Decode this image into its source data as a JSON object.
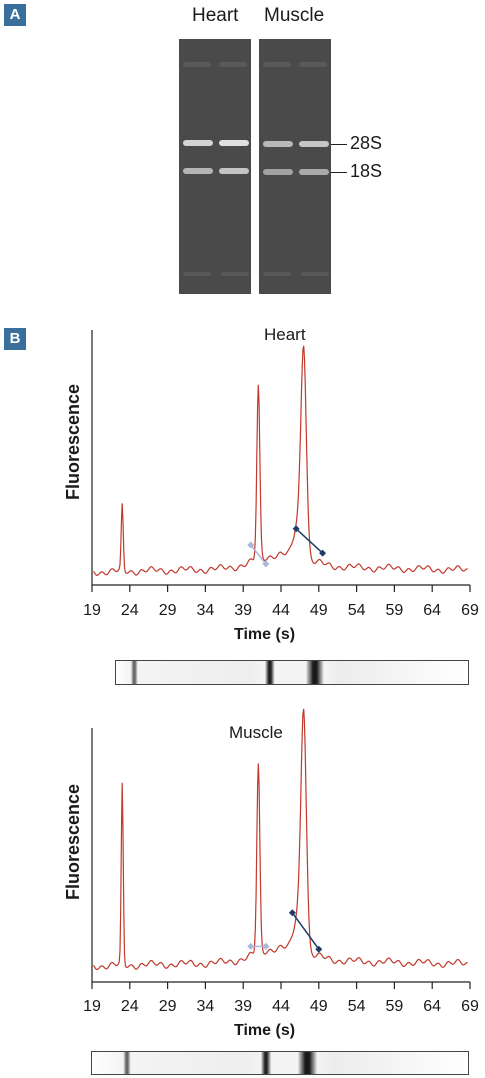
{
  "panel_a": {
    "tag": "A",
    "lane_labels": [
      "Heart",
      "Muscle"
    ],
    "band_labels": [
      "28S",
      "18S"
    ]
  },
  "panel_b": {
    "tag": "B"
  },
  "chart_data": [
    {
      "type": "line",
      "title": "Heart",
      "xlabel": "Time (s)",
      "ylabel": "Fluorescence",
      "x_ticks": [
        "19",
        "24",
        "29",
        "34",
        "39",
        "44",
        "49",
        "54",
        "59",
        "64",
        "69"
      ],
      "xlim": [
        19,
        69
      ],
      "colors": {
        "trace": "#c0392b",
        "marker_dark": "#1f3a68",
        "marker_light": "#a9b8d8"
      },
      "peaks": [
        {
          "x": 23.0,
          "y": 0.24
        },
        {
          "x": 41.0,
          "y": 0.64
        },
        {
          "x": 47.0,
          "y": 0.77
        }
      ],
      "markers": [
        {
          "x": 40.0,
          "y": 0.1,
          "style": "light"
        },
        {
          "x": 42.0,
          "y": 0.03,
          "style": "light"
        },
        {
          "x": 46.0,
          "y": 0.16,
          "style": "dark"
        },
        {
          "x": 49.5,
          "y": 0.07,
          "style": "dark"
        }
      ],
      "strip_bands": [
        24.5,
        42.5,
        48.5
      ]
    },
    {
      "type": "line",
      "title": "Muscle",
      "xlabel": "Time (s)",
      "ylabel": "Fluorescence",
      "x_ticks": [
        "19",
        "24",
        "29",
        "34",
        "39",
        "44",
        "49",
        "54",
        "59",
        "64",
        "69"
      ],
      "xlim": [
        19,
        69
      ],
      "colors": {
        "trace": "#c0392b",
        "marker_dark": "#1f3a68",
        "marker_light": "#a9b8d8"
      },
      "peaks": [
        {
          "x": 23.0,
          "y": 0.64
        },
        {
          "x": 41.0,
          "y": 0.67
        },
        {
          "x": 47.0,
          "y": 0.85
        }
      ],
      "markers": [
        {
          "x": 40.0,
          "y": 0.07,
          "style": "light"
        },
        {
          "x": 42.0,
          "y": 0.07,
          "style": "light"
        },
        {
          "x": 45.5,
          "y": 0.19,
          "style": "dark"
        },
        {
          "x": 49.0,
          "y": 0.06,
          "style": "dark"
        }
      ],
      "strip_bands": [
        23.5,
        42.0,
        47.5
      ]
    }
  ]
}
